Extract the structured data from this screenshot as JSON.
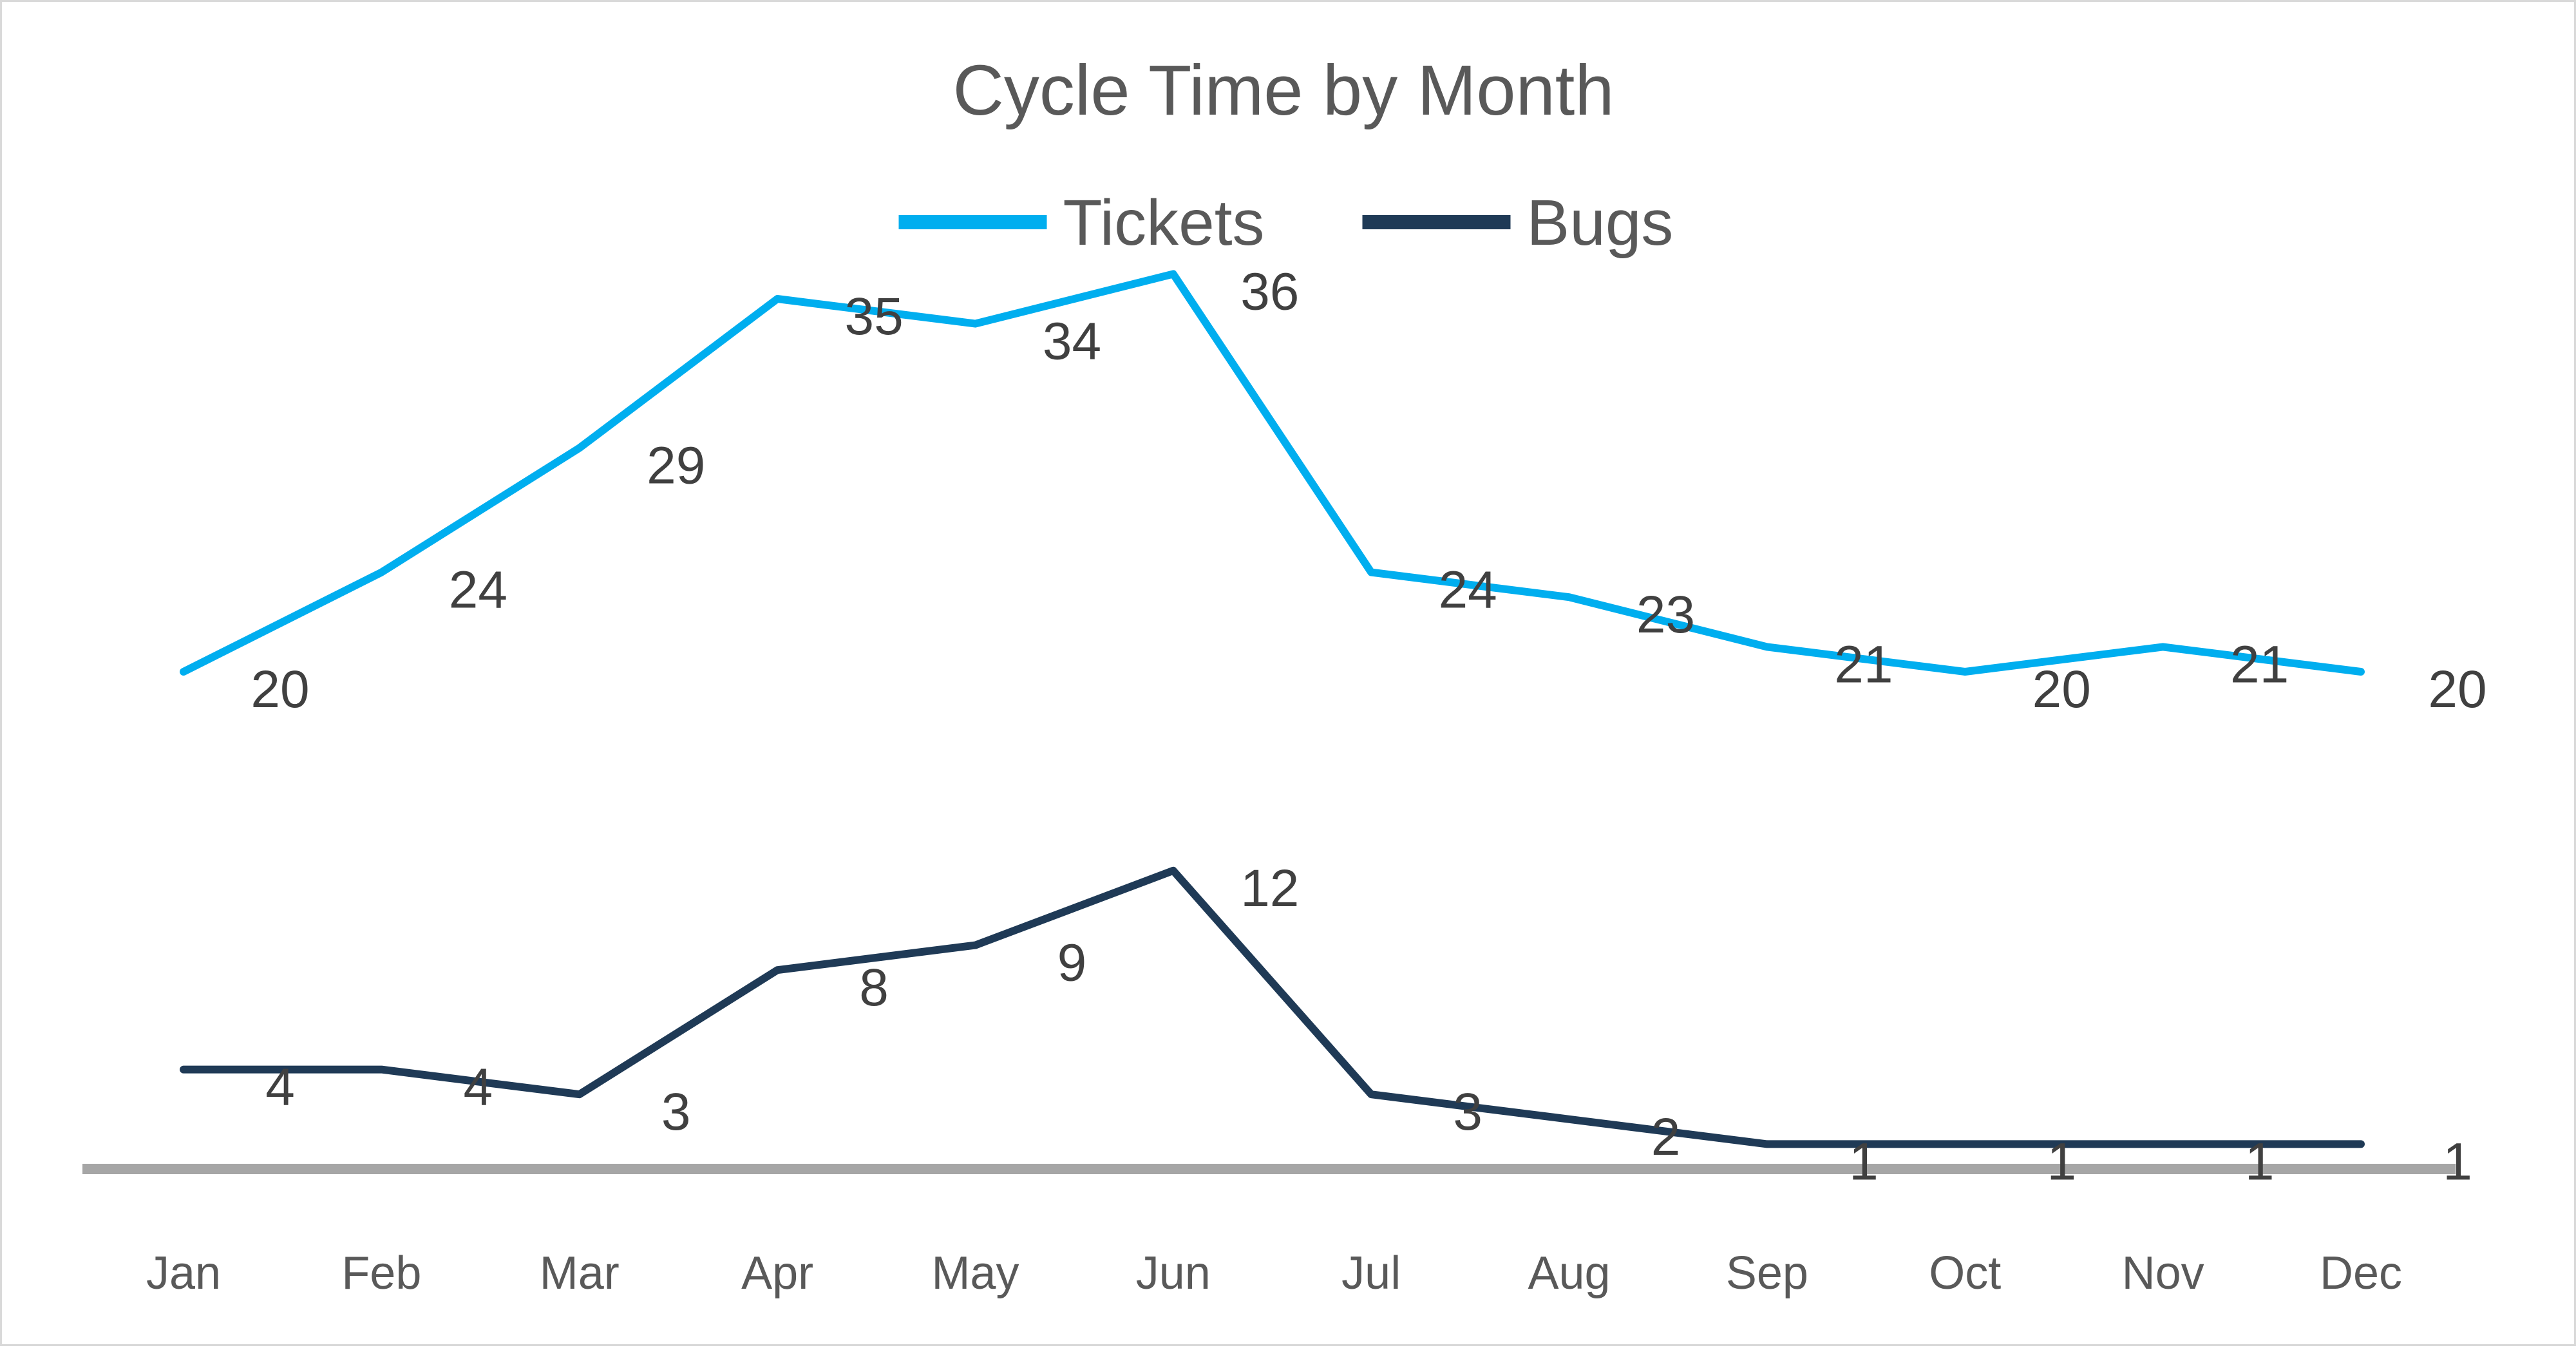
{
  "chart_data": {
    "type": "line",
    "title": "Cycle Time by Month",
    "xlabel": "",
    "ylabel": "",
    "categories": [
      "Jan",
      "Feb",
      "Mar",
      "Apr",
      "May",
      "Jun",
      "Jul",
      "Aug",
      "Sep",
      "Oct",
      "Nov",
      "Dec"
    ],
    "series": [
      {
        "name": "Tickets",
        "color": "#00aeef",
        "values": [
          20,
          24,
          29,
          35,
          34,
          36,
          24,
          23,
          21,
          20,
          21,
          20
        ]
      },
      {
        "name": "Bugs",
        "color": "#1f3a56",
        "values": [
          4,
          4,
          3,
          8,
          9,
          12,
          3,
          2,
          1,
          1,
          1,
          1
        ]
      }
    ],
    "ylim": [
      0,
      40
    ],
    "grid": false,
    "legend": "top-center",
    "data_labels": true,
    "axis_line_color": "#a6a6a6"
  }
}
